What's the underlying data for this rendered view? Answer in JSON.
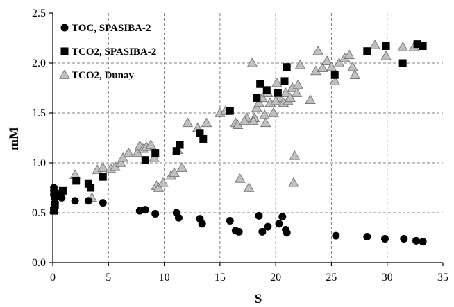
{
  "chart_data": {
    "type": "scatter",
    "title": "",
    "xlabel": "S",
    "ylabel": "mM",
    "xlim": [
      0,
      35
    ],
    "ylim": [
      0,
      2.5
    ],
    "x_ticks": [
      "0",
      "5",
      "10",
      "15",
      "20",
      "25",
      "30",
      "35"
    ],
    "y_ticks": [
      "0.0",
      "0.5",
      "1.0",
      "1.5",
      "2.0",
      "2.5"
    ],
    "grid": true,
    "legend_position": "top-left",
    "series": [
      {
        "name": "TOC, SPASIBA-2",
        "marker": "circle",
        "color": "#000000",
        "points": [
          [
            0.1,
            0.75
          ],
          [
            0.1,
            0.72
          ],
          [
            0.1,
            0.68
          ],
          [
            0.15,
            0.65
          ],
          [
            0.2,
            0.6
          ],
          [
            0.3,
            0.7
          ],
          [
            0.5,
            0.68
          ],
          [
            0.8,
            0.65
          ],
          [
            2.0,
            0.62
          ],
          [
            3.2,
            0.62
          ],
          [
            4.5,
            0.6
          ],
          [
            7.8,
            0.52
          ],
          [
            8.3,
            0.53
          ],
          [
            9.2,
            0.49
          ],
          [
            11.1,
            0.5
          ],
          [
            11.3,
            0.45
          ],
          [
            13.2,
            0.44
          ],
          [
            13.4,
            0.39
          ],
          [
            15.9,
            0.42
          ],
          [
            16.4,
            0.32
          ],
          [
            16.7,
            0.31
          ],
          [
            18.5,
            0.47
          ],
          [
            18.8,
            0.31
          ],
          [
            19.3,
            0.36
          ],
          [
            20.3,
            0.39
          ],
          [
            20.6,
            0.46
          ],
          [
            20.9,
            0.33
          ],
          [
            21.0,
            0.3
          ],
          [
            25.4,
            0.27
          ],
          [
            28.2,
            0.26
          ],
          [
            29.8,
            0.24
          ],
          [
            31.5,
            0.24
          ],
          [
            32.6,
            0.22
          ],
          [
            33.2,
            0.21
          ]
        ]
      },
      {
        "name": "TCO2, SPASIBA-2",
        "marker": "square",
        "color": "#000000",
        "points": [
          [
            0.1,
            0.52
          ],
          [
            0.2,
            0.58
          ],
          [
            0.4,
            0.68
          ],
          [
            0.9,
            0.72
          ],
          [
            2.1,
            0.82
          ],
          [
            3.2,
            0.79
          ],
          [
            3.4,
            0.75
          ],
          [
            4.5,
            0.86
          ],
          [
            8.3,
            1.03
          ],
          [
            9.2,
            1.1
          ],
          [
            11.1,
            1.12
          ],
          [
            11.4,
            1.18
          ],
          [
            13.2,
            1.3
          ],
          [
            13.5,
            1.24
          ],
          [
            15.9,
            1.52
          ],
          [
            18.3,
            1.65
          ],
          [
            18.6,
            1.79
          ],
          [
            19.2,
            1.73
          ],
          [
            20.2,
            1.7
          ],
          [
            20.8,
            1.82
          ],
          [
            21.0,
            1.96
          ],
          [
            25.3,
            1.88
          ],
          [
            28.2,
            2.12
          ],
          [
            29.9,
            2.17
          ],
          [
            31.4,
            2.0
          ],
          [
            32.7,
            2.19
          ],
          [
            33.2,
            2.17
          ]
        ]
      },
      {
        "name": "TCO2, Dunay",
        "marker": "triangle",
        "color": "#c0c0c0",
        "points": [
          [
            2.0,
            0.88
          ],
          [
            3.5,
            0.65
          ],
          [
            4.0,
            0.93
          ],
          [
            4.5,
            0.95
          ],
          [
            5.2,
            0.94
          ],
          [
            5.6,
            0.96
          ],
          [
            6.1,
            1.0
          ],
          [
            6.3,
            1.05
          ],
          [
            6.8,
            1.1
          ],
          [
            7.6,
            1.1
          ],
          [
            7.8,
            1.17
          ],
          [
            8.1,
            1.14
          ],
          [
            8.4,
            1.16
          ],
          [
            8.8,
            1.18
          ],
          [
            9.1,
            1.05
          ],
          [
            9.3,
            0.77
          ],
          [
            9.5,
            0.75
          ],
          [
            9.9,
            0.8
          ],
          [
            10.6,
            0.87
          ],
          [
            10.9,
            0.9
          ],
          [
            11.2,
            1.13
          ],
          [
            11.6,
            0.95
          ],
          [
            12.1,
            1.4
          ],
          [
            13.0,
            1.35
          ],
          [
            13.8,
            1.4
          ],
          [
            15.0,
            1.5
          ],
          [
            15.5,
            1.52
          ],
          [
            16.4,
            1.4
          ],
          [
            16.8,
            0.84
          ],
          [
            17.4,
            1.45
          ],
          [
            17.6,
            0.75
          ],
          [
            17.9,
            2.0
          ],
          [
            18.1,
            1.45
          ],
          [
            18.3,
            1.55
          ],
          [
            18.5,
            1.6
          ],
          [
            18.8,
            1.65
          ],
          [
            19.0,
            1.48
          ],
          [
            19.3,
            1.7
          ],
          [
            19.5,
            1.6
          ],
          [
            19.8,
            1.5
          ],
          [
            20.1,
            1.8
          ],
          [
            20.4,
            1.65
          ],
          [
            20.7,
            1.6
          ],
          [
            20.9,
            1.7
          ],
          [
            21.1,
            1.62
          ],
          [
            21.3,
            1.65
          ],
          [
            21.5,
            1.75
          ],
          [
            21.6,
            0.8
          ],
          [
            21.7,
            1.07
          ],
          [
            21.9,
            1.7
          ],
          [
            22.2,
            1.98
          ],
          [
            23.1,
            1.63
          ],
          [
            23.6,
            1.92
          ],
          [
            23.8,
            2.12
          ],
          [
            24.2,
            1.95
          ],
          [
            24.6,
            2.02
          ],
          [
            25.0,
            1.96
          ],
          [
            25.3,
            1.82
          ],
          [
            25.7,
            2.0
          ],
          [
            26.2,
            2.05
          ],
          [
            26.6,
            2.08
          ],
          [
            26.9,
            1.96
          ],
          [
            27.1,
            1.88
          ],
          [
            28.9,
            2.18
          ],
          [
            29.9,
            2.07
          ],
          [
            31.4,
            2.16
          ],
          [
            32.4,
            2.16
          ],
          [
            16.6,
            1.38
          ],
          [
            17.2,
            1.42
          ],
          [
            18.0,
            1.42
          ],
          [
            19.1,
            1.4
          ],
          [
            20.0,
            1.62
          ],
          [
            22.0,
            1.78
          ]
        ]
      }
    ]
  }
}
